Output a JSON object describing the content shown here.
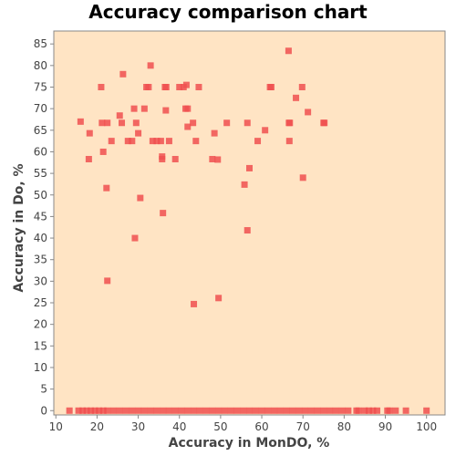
{
  "chart_data": {
    "type": "scatter",
    "title": "Accuracy comparison chart",
    "xlabel": "Accuracy in MonDO, %",
    "ylabel": "Accuracy in Do, %",
    "xlim": [
      9.5,
      104.5
    ],
    "ylim": [
      -1,
      88
    ],
    "xticks": [
      10,
      20,
      30,
      40,
      50,
      60,
      70,
      80,
      90,
      100
    ],
    "yticks": [
      0,
      5,
      10,
      15,
      20,
      25,
      30,
      35,
      40,
      45,
      50,
      55,
      60,
      65,
      70,
      75,
      80,
      85
    ],
    "grid": false,
    "legend": "none",
    "colors": {
      "plot_background": "#ffe4c4",
      "marker": "#f05050",
      "axis": "#888888"
    },
    "series": [
      {
        "points": [
          [
            13.3,
            0
          ],
          [
            15.5,
            0
          ],
          [
            16.5,
            0
          ],
          [
            17.5,
            0
          ],
          [
            18.5,
            0
          ],
          [
            19.5,
            0
          ],
          [
            20.5,
            0
          ],
          [
            21.5,
            0
          ],
          [
            22.5,
            0
          ],
          [
            24,
            0
          ],
          [
            25.5,
            0
          ],
          [
            27,
            0
          ],
          [
            28.5,
            0
          ],
          [
            30,
            0
          ],
          [
            31.5,
            0
          ],
          [
            33,
            0
          ],
          [
            34.5,
            0
          ],
          [
            36,
            0
          ],
          [
            37.5,
            0
          ],
          [
            39,
            0
          ],
          [
            40.5,
            0
          ],
          [
            42,
            0
          ],
          [
            43.5,
            0
          ],
          [
            45,
            0
          ],
          [
            46.5,
            0
          ],
          [
            48,
            0
          ],
          [
            49.5,
            0
          ],
          [
            51,
            0
          ],
          [
            52.5,
            0
          ],
          [
            54,
            0
          ],
          [
            55.5,
            0
          ],
          [
            57,
            0
          ],
          [
            58.5,
            0
          ],
          [
            60,
            0
          ],
          [
            61.5,
            0
          ],
          [
            63,
            0
          ],
          [
            64.5,
            0
          ],
          [
            66,
            0
          ],
          [
            67.5,
            0
          ],
          [
            69,
            0
          ],
          [
            70.5,
            0
          ],
          [
            72,
            0
          ],
          [
            73.5,
            0
          ],
          [
            75,
            0
          ],
          [
            76.5,
            0
          ],
          [
            78,
            0
          ],
          [
            79.5,
            0
          ],
          [
            81,
            0
          ],
          [
            83,
            0
          ],
          [
            83.5,
            0
          ],
          [
            85,
            0
          ],
          [
            86,
            0
          ],
          [
            87,
            0
          ],
          [
            88,
            0
          ],
          [
            90.5,
            0
          ],
          [
            91,
            0
          ],
          [
            92.5,
            0
          ],
          [
            95,
            0
          ],
          [
            100,
            0
          ],
          [
            16,
            67
          ],
          [
            18,
            58.3
          ],
          [
            18.2,
            64.3
          ],
          [
            21,
            75
          ],
          [
            21.2,
            66.7
          ],
          [
            21.5,
            60
          ],
          [
            22.3,
            51.6
          ],
          [
            22.5,
            66.7
          ],
          [
            22.5,
            30.1
          ],
          [
            23.5,
            62.5
          ],
          [
            25.5,
            68.4
          ],
          [
            26,
            66.7
          ],
          [
            26.3,
            78
          ],
          [
            27.5,
            62.5
          ],
          [
            28.5,
            62.5
          ],
          [
            29,
            70
          ],
          [
            29.2,
            40
          ],
          [
            29.5,
            66.7
          ],
          [
            30,
            64.3
          ],
          [
            30.5,
            49.3
          ],
          [
            31.5,
            70
          ],
          [
            32,
            75
          ],
          [
            32.5,
            75
          ],
          [
            33,
            80
          ],
          [
            33.5,
            62.5
          ],
          [
            34.5,
            62.5
          ],
          [
            35.5,
            62.5
          ],
          [
            35.8,
            58.3
          ],
          [
            35.8,
            58.9
          ],
          [
            36,
            45.8
          ],
          [
            36.5,
            75
          ],
          [
            36.7,
            69.6
          ],
          [
            36.8,
            75
          ],
          [
            37.5,
            62.5
          ],
          [
            39,
            58.3
          ],
          [
            40,
            75
          ],
          [
            41,
            75
          ],
          [
            41.5,
            70
          ],
          [
            41.7,
            75.5
          ],
          [
            42,
            70
          ],
          [
            42,
            65.8
          ],
          [
            43.3,
            66.7
          ],
          [
            43.5,
            24.7
          ],
          [
            44,
            62.5
          ],
          [
            44.7,
            75
          ],
          [
            48,
            58.3
          ],
          [
            48.5,
            64.3
          ],
          [
            49.3,
            58.2
          ],
          [
            49.5,
            26.1
          ],
          [
            51.5,
            66.7
          ],
          [
            55.8,
            52.4
          ],
          [
            56.5,
            41.8
          ],
          [
            56.5,
            66.7
          ],
          [
            57,
            56.2
          ],
          [
            59,
            62.5
          ],
          [
            60.8,
            65
          ],
          [
            62,
            75
          ],
          [
            62.3,
            75
          ],
          [
            66.5,
            83.4
          ],
          [
            66.6,
            66.7
          ],
          [
            66.7,
            62.5
          ],
          [
            66.8,
            66.7
          ],
          [
            68.3,
            72.5
          ],
          [
            69.8,
            75
          ],
          [
            70,
            54
          ],
          [
            71.2,
            69.2
          ],
          [
            75,
            66.7
          ],
          [
            75.2,
            66.7
          ]
        ]
      }
    ]
  }
}
